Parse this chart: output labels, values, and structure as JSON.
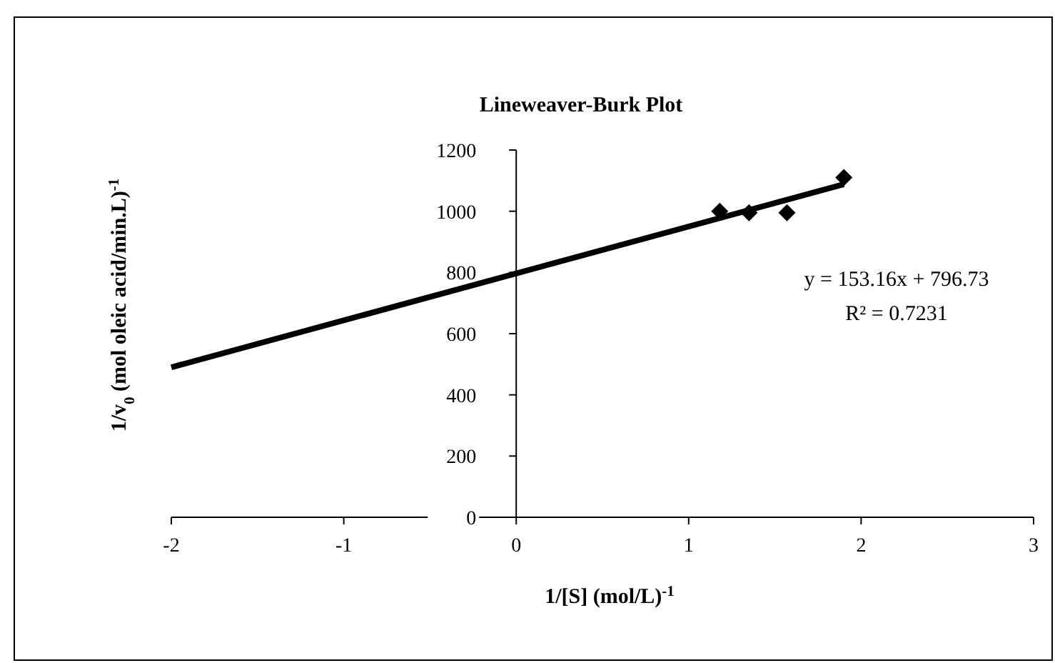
{
  "chart_data": {
    "type": "scatter",
    "title": "Lineweaver-Burk Plot",
    "xlabel": "1/[S] (mol/L)$^{-1}$",
    "ylabel": "1/v$_{0}$ (mol oleic acid/min.L)$^{-1}$",
    "xlim": [
      -2,
      3
    ],
    "xticks": [
      -2,
      -1,
      0,
      1,
      2,
      3
    ],
    "ylim": [
      0,
      1200
    ],
    "yticks": [
      0,
      200,
      400,
      600,
      800,
      1000,
      1200
    ],
    "grid": false,
    "marker": "diamond",
    "series": [
      {
        "type": "scatter",
        "color": "#000000",
        "x": [
          1.18,
          1.35,
          1.57,
          1.9
        ],
        "values": [
          1000,
          995,
          995,
          1110
        ]
      },
      {
        "type": "line",
        "color": "#000000",
        "marker": "none",
        "x": [
          -2,
          1.9
        ],
        "values": [
          490,
          1088
        ]
      }
    ],
    "annotations": [
      "y = 153.16x + 796.73",
      "R² = 0.7231"
    ]
  }
}
